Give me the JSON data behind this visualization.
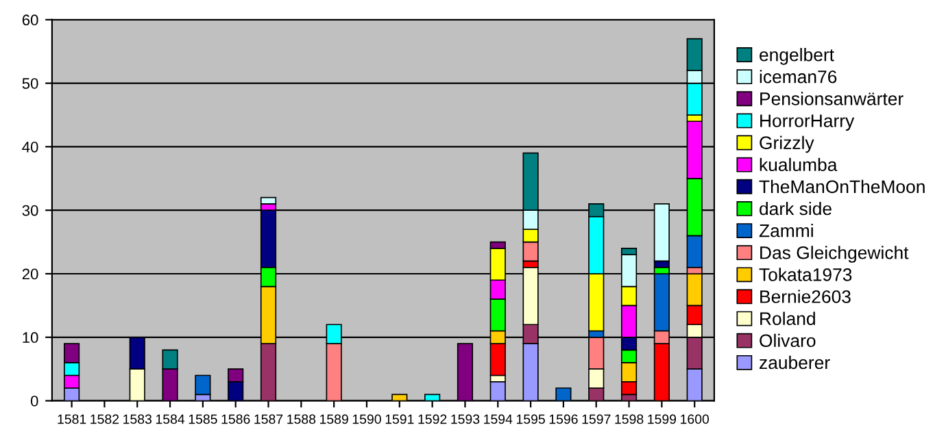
{
  "chart_data": {
    "type": "bar",
    "stacked": true,
    "categories": [
      "1581",
      "1582",
      "1583",
      "1584",
      "1585",
      "1586",
      "1587",
      "1588",
      "1589",
      "1590",
      "1591",
      "1592",
      "1593",
      "1594",
      "1595",
      "1596",
      "1597",
      "1598",
      "1599",
      "1600"
    ],
    "ylim": [
      0,
      60
    ],
    "yticks": [
      0,
      10,
      20,
      30,
      40,
      50,
      60
    ],
    "grid": "y",
    "legend": "right",
    "series": [
      {
        "name": "zauberer",
        "color": "#9999ff",
        "values": [
          2,
          null,
          null,
          null,
          1,
          null,
          null,
          null,
          null,
          null,
          null,
          null,
          null,
          3,
          9,
          null,
          null,
          null,
          null,
          5
        ]
      },
      {
        "name": "Olivaro",
        "color": "#993366",
        "values": [
          null,
          null,
          null,
          null,
          null,
          null,
          9,
          null,
          null,
          null,
          null,
          null,
          null,
          null,
          3,
          null,
          2,
          1,
          null,
          5
        ]
      },
      {
        "name": "Roland",
        "color": "#ffffcc",
        "values": [
          null,
          null,
          5,
          null,
          null,
          null,
          null,
          null,
          null,
          null,
          null,
          null,
          null,
          1,
          9,
          null,
          3,
          null,
          null,
          2
        ]
      },
      {
        "name": "Bernie2603",
        "color": "#ff0000",
        "values": [
          null,
          null,
          null,
          null,
          null,
          null,
          null,
          null,
          null,
          null,
          null,
          null,
          null,
          5,
          1,
          null,
          null,
          2,
          9,
          3
        ]
      },
      {
        "name": "Tokata1973",
        "color": "#ffcc00",
        "values": [
          null,
          null,
          null,
          null,
          null,
          null,
          9,
          null,
          null,
          null,
          1,
          null,
          null,
          2,
          null,
          null,
          null,
          3,
          null,
          5
        ]
      },
      {
        "name": "Das Gleichgewicht",
        "color": "#ff8080",
        "values": [
          null,
          null,
          null,
          null,
          null,
          null,
          null,
          null,
          9,
          null,
          null,
          null,
          null,
          null,
          3,
          null,
          5,
          null,
          2,
          1
        ]
      },
      {
        "name": "Zammi",
        "color": "#0066cc",
        "values": [
          null,
          null,
          null,
          null,
          3,
          null,
          null,
          null,
          null,
          null,
          null,
          null,
          null,
          null,
          null,
          2,
          1,
          null,
          9,
          5
        ]
      },
      {
        "name": "dark side",
        "color": "#00ff00",
        "values": [
          null,
          null,
          null,
          null,
          null,
          null,
          3,
          null,
          null,
          null,
          null,
          null,
          null,
          5,
          null,
          null,
          null,
          2,
          1,
          9
        ]
      },
      {
        "name": "TheManOnTheMoon",
        "color": "#000080",
        "values": [
          null,
          null,
          5,
          null,
          null,
          3,
          9,
          null,
          null,
          null,
          null,
          null,
          null,
          null,
          null,
          null,
          null,
          2,
          1,
          null
        ]
      },
      {
        "name": "kualumba",
        "color": "#ff00ff",
        "values": [
          2,
          null,
          null,
          null,
          null,
          null,
          1,
          null,
          null,
          null,
          null,
          null,
          null,
          3,
          null,
          null,
          null,
          5,
          null,
          9
        ]
      },
      {
        "name": "Grizzly",
        "color": "#ffff00",
        "values": [
          null,
          null,
          null,
          null,
          null,
          null,
          null,
          null,
          null,
          null,
          null,
          null,
          null,
          5,
          2,
          null,
          9,
          3,
          null,
          1
        ]
      },
      {
        "name": "HorrorHarry",
        "color": "#00ffff",
        "values": [
          2,
          null,
          null,
          null,
          null,
          null,
          null,
          null,
          3,
          null,
          null,
          1,
          null,
          null,
          null,
          null,
          9,
          null,
          null,
          5
        ]
      },
      {
        "name": "Pensionsanwärter",
        "color": "#800080",
        "values": [
          3,
          null,
          null,
          5,
          null,
          2,
          null,
          null,
          null,
          null,
          null,
          null,
          9,
          1,
          null,
          null,
          null,
          null,
          null,
          null
        ]
      },
      {
        "name": "iceman76",
        "color": "#ccffff",
        "values": [
          null,
          null,
          null,
          null,
          null,
          null,
          1,
          null,
          null,
          null,
          null,
          null,
          null,
          null,
          3,
          null,
          null,
          5,
          9,
          2
        ]
      },
      {
        "name": "engelbert",
        "color": "#008080",
        "values": [
          null,
          null,
          null,
          3,
          null,
          null,
          null,
          null,
          null,
          null,
          null,
          null,
          null,
          null,
          9,
          null,
          2,
          1,
          null,
          5
        ]
      }
    ]
  }
}
